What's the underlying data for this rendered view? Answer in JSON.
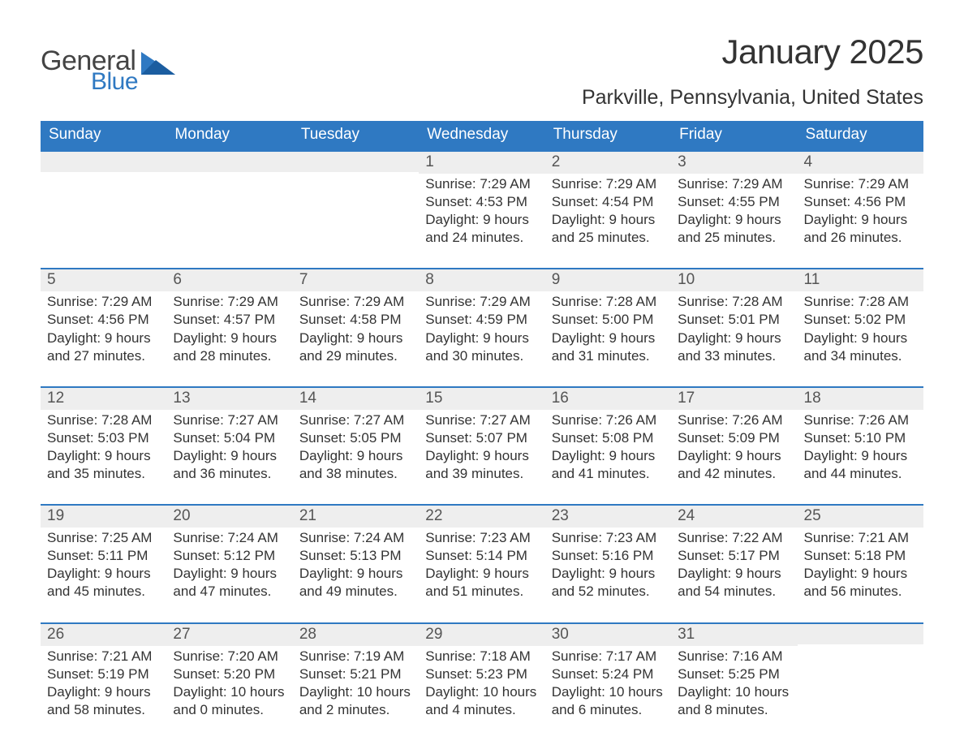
{
  "logo": {
    "word1": "General",
    "word2": "Blue"
  },
  "title": "January 2025",
  "location": "Parkville, Pennsylvania, United States",
  "colors": {
    "header_bg": "#2f79c2",
    "header_text": "#ffffff",
    "daynum_bg": "#eeeeee",
    "row_border": "#2f79c2",
    "text": "#333333",
    "logo_gray": "#444444",
    "logo_blue": "#2f79c2",
    "tri_blue": "#1b5da0"
  },
  "weekdays": [
    "Sunday",
    "Monday",
    "Tuesday",
    "Wednesday",
    "Thursday",
    "Friday",
    "Saturday"
  ],
  "weeks": [
    [
      {
        "n": "",
        "sr": "",
        "ss": "",
        "d1": "",
        "d2": ""
      },
      {
        "n": "",
        "sr": "",
        "ss": "",
        "d1": "",
        "d2": ""
      },
      {
        "n": "",
        "sr": "",
        "ss": "",
        "d1": "",
        "d2": ""
      },
      {
        "n": "1",
        "sr": "Sunrise: 7:29 AM",
        "ss": "Sunset: 4:53 PM",
        "d1": "Daylight: 9 hours",
        "d2": "and 24 minutes."
      },
      {
        "n": "2",
        "sr": "Sunrise: 7:29 AM",
        "ss": "Sunset: 4:54 PM",
        "d1": "Daylight: 9 hours",
        "d2": "and 25 minutes."
      },
      {
        "n": "3",
        "sr": "Sunrise: 7:29 AM",
        "ss": "Sunset: 4:55 PM",
        "d1": "Daylight: 9 hours",
        "d2": "and 25 minutes."
      },
      {
        "n": "4",
        "sr": "Sunrise: 7:29 AM",
        "ss": "Sunset: 4:56 PM",
        "d1": "Daylight: 9 hours",
        "d2": "and 26 minutes."
      }
    ],
    [
      {
        "n": "5",
        "sr": "Sunrise: 7:29 AM",
        "ss": "Sunset: 4:56 PM",
        "d1": "Daylight: 9 hours",
        "d2": "and 27 minutes."
      },
      {
        "n": "6",
        "sr": "Sunrise: 7:29 AM",
        "ss": "Sunset: 4:57 PM",
        "d1": "Daylight: 9 hours",
        "d2": "and 28 minutes."
      },
      {
        "n": "7",
        "sr": "Sunrise: 7:29 AM",
        "ss": "Sunset: 4:58 PM",
        "d1": "Daylight: 9 hours",
        "d2": "and 29 minutes."
      },
      {
        "n": "8",
        "sr": "Sunrise: 7:29 AM",
        "ss": "Sunset: 4:59 PM",
        "d1": "Daylight: 9 hours",
        "d2": "and 30 minutes."
      },
      {
        "n": "9",
        "sr": "Sunrise: 7:28 AM",
        "ss": "Sunset: 5:00 PM",
        "d1": "Daylight: 9 hours",
        "d2": "and 31 minutes."
      },
      {
        "n": "10",
        "sr": "Sunrise: 7:28 AM",
        "ss": "Sunset: 5:01 PM",
        "d1": "Daylight: 9 hours",
        "d2": "and 33 minutes."
      },
      {
        "n": "11",
        "sr": "Sunrise: 7:28 AM",
        "ss": "Sunset: 5:02 PM",
        "d1": "Daylight: 9 hours",
        "d2": "and 34 minutes."
      }
    ],
    [
      {
        "n": "12",
        "sr": "Sunrise: 7:28 AM",
        "ss": "Sunset: 5:03 PM",
        "d1": "Daylight: 9 hours",
        "d2": "and 35 minutes."
      },
      {
        "n": "13",
        "sr": "Sunrise: 7:27 AM",
        "ss": "Sunset: 5:04 PM",
        "d1": "Daylight: 9 hours",
        "d2": "and 36 minutes."
      },
      {
        "n": "14",
        "sr": "Sunrise: 7:27 AM",
        "ss": "Sunset: 5:05 PM",
        "d1": "Daylight: 9 hours",
        "d2": "and 38 minutes."
      },
      {
        "n": "15",
        "sr": "Sunrise: 7:27 AM",
        "ss": "Sunset: 5:07 PM",
        "d1": "Daylight: 9 hours",
        "d2": "and 39 minutes."
      },
      {
        "n": "16",
        "sr": "Sunrise: 7:26 AM",
        "ss": "Sunset: 5:08 PM",
        "d1": "Daylight: 9 hours",
        "d2": "and 41 minutes."
      },
      {
        "n": "17",
        "sr": "Sunrise: 7:26 AM",
        "ss": "Sunset: 5:09 PM",
        "d1": "Daylight: 9 hours",
        "d2": "and 42 minutes."
      },
      {
        "n": "18",
        "sr": "Sunrise: 7:26 AM",
        "ss": "Sunset: 5:10 PM",
        "d1": "Daylight: 9 hours",
        "d2": "and 44 minutes."
      }
    ],
    [
      {
        "n": "19",
        "sr": "Sunrise: 7:25 AM",
        "ss": "Sunset: 5:11 PM",
        "d1": "Daylight: 9 hours",
        "d2": "and 45 minutes."
      },
      {
        "n": "20",
        "sr": "Sunrise: 7:24 AM",
        "ss": "Sunset: 5:12 PM",
        "d1": "Daylight: 9 hours",
        "d2": "and 47 minutes."
      },
      {
        "n": "21",
        "sr": "Sunrise: 7:24 AM",
        "ss": "Sunset: 5:13 PM",
        "d1": "Daylight: 9 hours",
        "d2": "and 49 minutes."
      },
      {
        "n": "22",
        "sr": "Sunrise: 7:23 AM",
        "ss": "Sunset: 5:14 PM",
        "d1": "Daylight: 9 hours",
        "d2": "and 51 minutes."
      },
      {
        "n": "23",
        "sr": "Sunrise: 7:23 AM",
        "ss": "Sunset: 5:16 PM",
        "d1": "Daylight: 9 hours",
        "d2": "and 52 minutes."
      },
      {
        "n": "24",
        "sr": "Sunrise: 7:22 AM",
        "ss": "Sunset: 5:17 PM",
        "d1": "Daylight: 9 hours",
        "d2": "and 54 minutes."
      },
      {
        "n": "25",
        "sr": "Sunrise: 7:21 AM",
        "ss": "Sunset: 5:18 PM",
        "d1": "Daylight: 9 hours",
        "d2": "and 56 minutes."
      }
    ],
    [
      {
        "n": "26",
        "sr": "Sunrise: 7:21 AM",
        "ss": "Sunset: 5:19 PM",
        "d1": "Daylight: 9 hours",
        "d2": "and 58 minutes."
      },
      {
        "n": "27",
        "sr": "Sunrise: 7:20 AM",
        "ss": "Sunset: 5:20 PM",
        "d1": "Daylight: 10 hours",
        "d2": "and 0 minutes."
      },
      {
        "n": "28",
        "sr": "Sunrise: 7:19 AM",
        "ss": "Sunset: 5:21 PM",
        "d1": "Daylight: 10 hours",
        "d2": "and 2 minutes."
      },
      {
        "n": "29",
        "sr": "Sunrise: 7:18 AM",
        "ss": "Sunset: 5:23 PM",
        "d1": "Daylight: 10 hours",
        "d2": "and 4 minutes."
      },
      {
        "n": "30",
        "sr": "Sunrise: 7:17 AM",
        "ss": "Sunset: 5:24 PM",
        "d1": "Daylight: 10 hours",
        "d2": "and 6 minutes."
      },
      {
        "n": "31",
        "sr": "Sunrise: 7:16 AM",
        "ss": "Sunset: 5:25 PM",
        "d1": "Daylight: 10 hours",
        "d2": "and 8 minutes."
      },
      {
        "n": "",
        "sr": "",
        "ss": "",
        "d1": "",
        "d2": ""
      }
    ]
  ]
}
